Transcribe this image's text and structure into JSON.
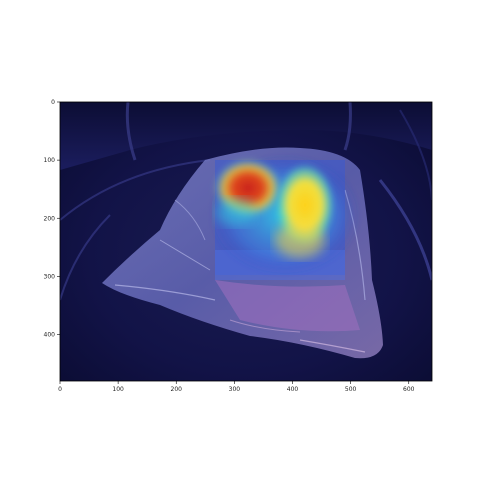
{
  "figure": {
    "image_description_icon": "heatmap-overlay-photo",
    "colors": {
      "frame": "#000000",
      "background": "#ffffff",
      "heat_hot": "#d62818",
      "heat_warm": "#ffd21e",
      "heat_cool": "#2fe0e6",
      "heat_cold": "#1f2aa8"
    }
  },
  "axes": {
    "x_ticks": [
      "0",
      "100",
      "200",
      "300",
      "400",
      "500",
      "600"
    ],
    "x_tick_values": [
      0,
      100,
      200,
      300,
      400,
      500,
      600
    ],
    "y_ticks": [
      "0",
      "100",
      "200",
      "300",
      "400"
    ],
    "y_tick_values": [
      0,
      100,
      200,
      300,
      400
    ],
    "x_range": [
      0,
      640
    ],
    "y_range": [
      0,
      480
    ]
  }
}
